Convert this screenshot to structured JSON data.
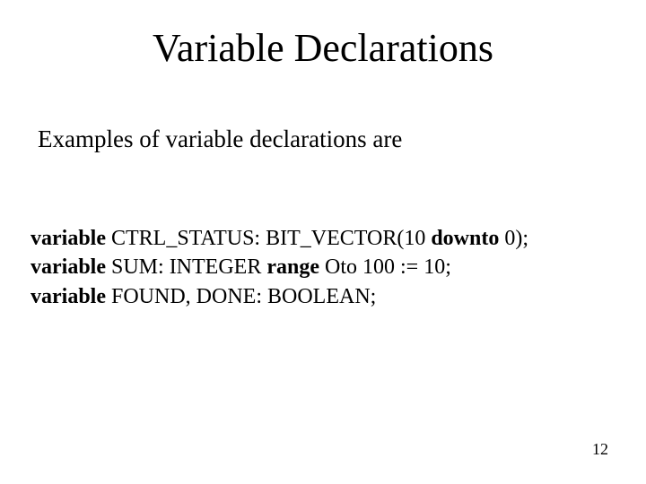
{
  "slide": {
    "title": "Variable Declarations",
    "intro": "Examples of variable declarations are",
    "code": {
      "line1": {
        "kw1": "variable",
        "t1": " CTRL_STATUS: BIT_VECTOR(10 ",
        "kw2": "downto",
        "t2": " 0);"
      },
      "line2": {
        "kw1": "variable",
        "t1": " SUM: INTEGER ",
        "kw2": "range",
        "t2": " Oto 100 := 10;"
      },
      "line3": {
        "kw1": "variable",
        "t1": " FOUND, DONE: BOOLEAN;"
      }
    },
    "page_number": "12"
  },
  "style": {
    "background_color": "#ffffff",
    "text_color": "#000000",
    "font_family": "Times New Roman",
    "title_fontsize": 44,
    "intro_fontsize": 27,
    "code_fontsize": 24,
    "pagenum_fontsize": 18
  }
}
